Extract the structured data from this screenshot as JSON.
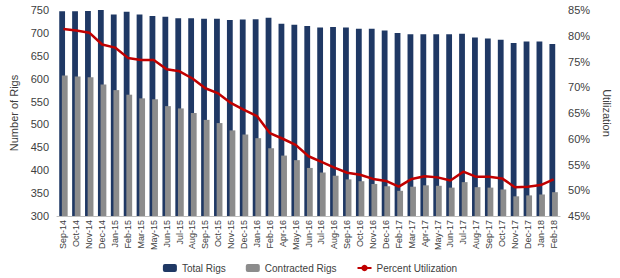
{
  "chart_data": {
    "type": "bar",
    "categories": [
      "Sep-14",
      "Oct-14",
      "Nov-14",
      "Dec-14",
      "Jan-15",
      "Feb-15",
      "Mar-15",
      "May-15",
      "Jun-15",
      "Jul-15",
      "Aug-15",
      "Sep-15",
      "Oct-15",
      "Nov-15",
      "Dec-15",
      "Jan-16",
      "Feb-16",
      "Apr-16",
      "May-16",
      "Jun-16",
      "Jul-16",
      "Aug-16",
      "Sep-16",
      "Oct-16",
      "Nov-16",
      "Dec-16",
      "Feb-17",
      "Mar-17",
      "Apr-17",
      "May-17",
      "Jun-17",
      "Jul-17",
      "Aug-17",
      "Sep-17",
      "Oct-17",
      "Nov-17",
      "Dec-17",
      "Jan-18",
      "Feb-18"
    ],
    "y_label": "Number of Rigs",
    "y2_label": "Utilization",
    "ylim": [
      300,
      750
    ],
    "yticks": [
      300,
      350,
      400,
      450,
      500,
      550,
      600,
      650,
      700,
      750
    ],
    "y2lim": [
      45,
      85
    ],
    "y2ticks": [
      {
        "value": 45,
        "label": "45%"
      },
      {
        "value": 50,
        "label": "50%"
      },
      {
        "value": 55,
        "label": "55%"
      },
      {
        "value": 60,
        "label": "60%"
      },
      {
        "value": 65,
        "label": "65%"
      },
      {
        "value": 70,
        "label": "70%"
      },
      {
        "value": 75,
        "label": "75%"
      },
      {
        "value": 80,
        "label": "80%"
      },
      {
        "value": 85,
        "label": "85%"
      }
    ],
    "grid": false,
    "legend": "bottom",
    "series": [
      {
        "name": "Total Rigs",
        "type": "bar",
        "color": "#1f3864",
        "values": [
          747,
          747,
          748,
          750,
          740,
          746,
          740,
          737,
          735,
          732,
          732,
          731,
          731,
          728,
          729,
          730,
          733,
          720,
          718,
          715,
          712,
          713,
          712,
          709,
          709,
          705,
          700,
          697,
          697,
          697,
          697,
          698,
          690,
          688,
          685,
          678,
          681,
          681,
          676
        ]
      },
      {
        "name": "Contracted Rigs",
        "type": "bar",
        "color": "#8c8c8c",
        "values": [
          607,
          605,
          603,
          587,
          575,
          565,
          557,
          555,
          540,
          535,
          525,
          510,
          503,
          487,
          478,
          470,
          448,
          432,
          422,
          405,
          395,
          388,
          380,
          376,
          370,
          365,
          355,
          364,
          367,
          366,
          362,
          374,
          363,
          362,
          358,
          343,
          345,
          347,
          352
        ]
      },
      {
        "name": "Percent Utilization",
        "type": "line",
        "axis": "y2",
        "color": "#c00000",
        "marker": "none",
        "values": [
          81.3,
          81.0,
          80.6,
          78.3,
          77.7,
          75.7,
          75.3,
          75.3,
          73.5,
          73.1,
          71.7,
          69.8,
          68.8,
          66.9,
          65.6,
          64.4,
          61.1,
          60.0,
          58.8,
          56.6,
          55.5,
          54.4,
          53.4,
          53.0,
          52.2,
          51.8,
          50.7,
          52.2,
          52.7,
          52.5,
          51.9,
          53.6,
          52.6,
          52.6,
          52.3,
          50.6,
          50.7,
          51.0,
          52.1
        ]
      }
    ]
  }
}
